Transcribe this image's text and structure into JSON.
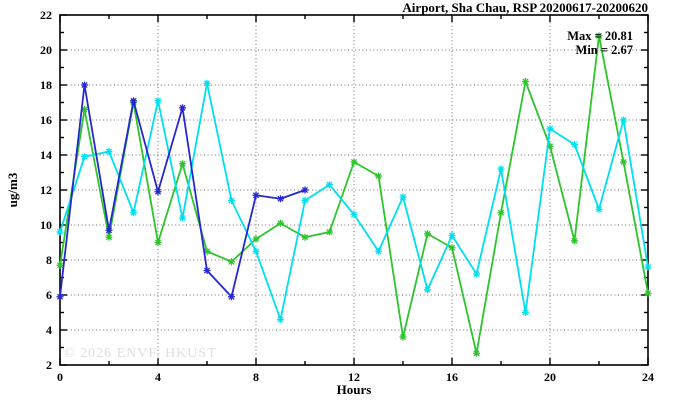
{
  "title": "Airport, Sha Chau, RSP 20200617-20200620",
  "annotations": {
    "max_label": "Max = 20.81",
    "min_label": "Min = 2.67"
  },
  "watermark": "© 2026 ENVF, HKUST",
  "chart_data": {
    "type": "line",
    "title": "Airport, Sha Chau, RSP 20200617-20200620",
    "xlabel": "Hours",
    "ylabel": "ug/m3",
    "xlim": [
      0,
      24
    ],
    "ylim": [
      2,
      22
    ],
    "x_major_ticks": [
      0,
      4,
      8,
      12,
      16,
      20,
      24
    ],
    "x_minor_step": 2,
    "y_major_ticks": [
      2,
      4,
      6,
      8,
      10,
      12,
      14,
      16,
      18,
      20,
      22
    ],
    "y_minor_step": 1,
    "grid": true,
    "legend_position": "none",
    "max_value": 20.81,
    "min_value": 2.67,
    "series": [
      {
        "name": "green",
        "color": "#2cc52c",
        "x": [
          0,
          1,
          2,
          3,
          4,
          5,
          6,
          7,
          8,
          9,
          10,
          11,
          12,
          13,
          14,
          15,
          16,
          17,
          18,
          19,
          20,
          21,
          22,
          23,
          24
        ],
        "values": [
          7.7,
          16.6,
          9.3,
          17.0,
          9.0,
          13.5,
          8.5,
          7.9,
          9.2,
          10.1,
          9.3,
          9.6,
          13.6,
          12.8,
          3.6,
          9.5,
          8.7,
          2.67,
          10.7,
          18.2,
          14.5,
          9.1,
          20.81,
          13.6,
          6.1
        ]
      },
      {
        "name": "cyan",
        "color": "#00dff0",
        "x": [
          0,
          1,
          2,
          3,
          4,
          5,
          6,
          7,
          8,
          9,
          10,
          11,
          12,
          13,
          14,
          15,
          16,
          17,
          18,
          19,
          20,
          21,
          22,
          23,
          24
        ],
        "values": [
          9.6,
          13.9,
          14.2,
          10.7,
          17.1,
          10.4,
          18.1,
          11.4,
          8.5,
          4.6,
          11.4,
          12.3,
          10.6,
          8.5,
          11.6,
          6.3,
          9.4,
          7.2,
          13.2,
          5.0,
          15.5,
          14.6,
          10.9,
          16.0,
          7.6
        ]
      },
      {
        "name": "blue",
        "color": "#2727cf",
        "x": [
          0,
          1,
          2,
          3,
          4,
          5,
          6,
          7,
          8,
          9,
          10
        ],
        "values": [
          5.9,
          18.0,
          9.7,
          17.1,
          11.9,
          16.7,
          7.4,
          5.9,
          11.7,
          11.5,
          12.0
        ]
      }
    ]
  }
}
